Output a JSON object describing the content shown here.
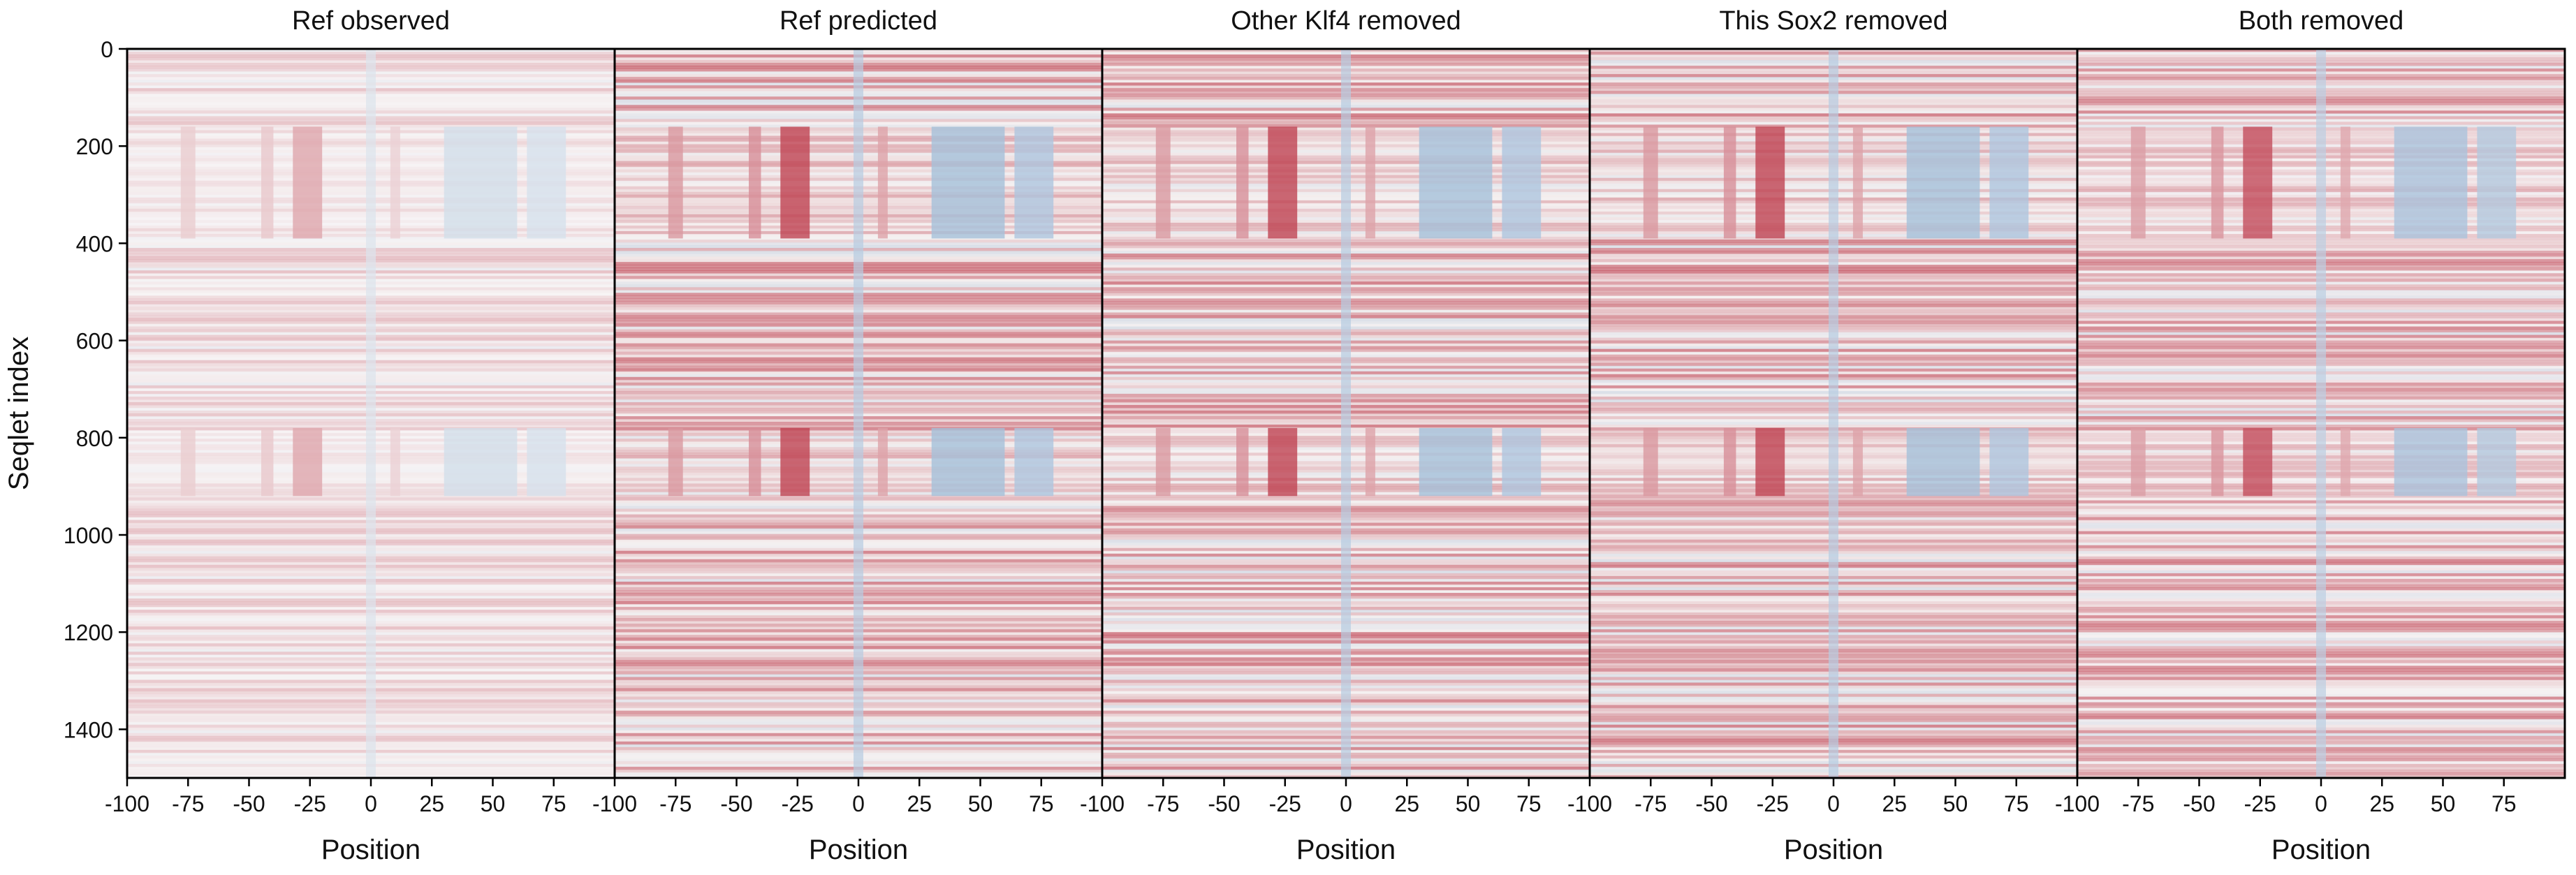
{
  "chart_data": [
    {
      "type": "heatmap",
      "title": "Ref observed",
      "xlabel": "Position",
      "ylabel": "Seqlet index",
      "xlim": [
        -100,
        100
      ],
      "ylim": [
        1500,
        0
      ],
      "grid": false,
      "colormap": "diverging blue-white-red (RdBu, reversed)",
      "x_ticks": [
        -100,
        -75,
        -50,
        -25,
        0,
        25,
        50,
        75
      ],
      "y_ticks": [
        0,
        200,
        400,
        600,
        800,
        1000,
        1200,
        1400
      ]
    },
    {
      "type": "heatmap",
      "title": "Ref predicted",
      "xlabel": "Position",
      "xlim": [
        -100,
        100
      ],
      "ylim": [
        1500,
        0
      ],
      "grid": false,
      "x_ticks": [
        -100,
        -75,
        -50,
        -25,
        0,
        25,
        50,
        75
      ]
    },
    {
      "type": "heatmap",
      "title": "Other Klf4 removed",
      "xlabel": "Position",
      "xlim": [
        -100,
        100
      ],
      "ylim": [
        1500,
        0
      ],
      "grid": false,
      "x_ticks": [
        -100,
        -75,
        -50,
        -25,
        0,
        25,
        50,
        75
      ]
    },
    {
      "type": "heatmap",
      "title": "This Sox2 removed",
      "xlabel": "Position",
      "xlim": [
        -100,
        100
      ],
      "ylim": [
        1500,
        0
      ],
      "grid": false,
      "x_ticks": [
        -100,
        -75,
        -50,
        -25,
        0,
        25,
        50,
        75
      ]
    },
    {
      "type": "heatmap",
      "title": "Both removed",
      "xlabel": "Position",
      "xlim": [
        -100,
        100
      ],
      "ylim": [
        1500,
        0
      ],
      "grid": false,
      "x_ticks": [
        -100,
        -75,
        -50,
        -25,
        0,
        25,
        50,
        75
      ]
    }
  ],
  "colors": {
    "positive": "#b2182b",
    "negative": "#2166ac",
    "neutral": "#f7f7f7",
    "axis": "#000000"
  }
}
